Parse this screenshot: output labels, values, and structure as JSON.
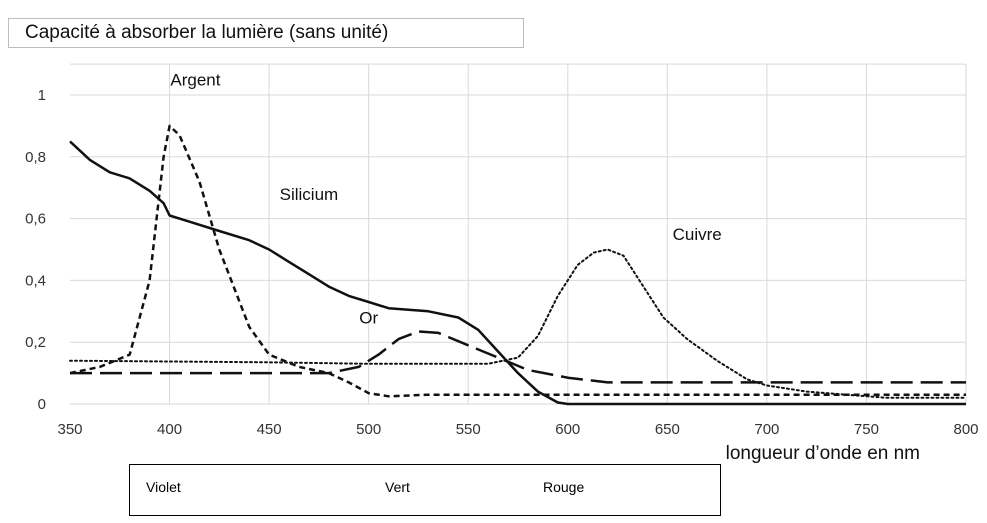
{
  "chart_data": {
    "type": "line",
    "title": "Capacité à absorber la lumière  (sans unité)",
    "xlabel": "longueur d’onde en nm",
    "ylabel": "",
    "xlim": [
      350,
      800
    ],
    "ylim": [
      0,
      1.1
    ],
    "grid": true,
    "x_ticks": [
      "350",
      "400",
      "450",
      "500",
      "550",
      "600",
      "650",
      "700",
      "750",
      "800"
    ],
    "y_ticks": [
      "0",
      "0,2",
      "0,4",
      "0,6",
      "0,8",
      "1"
    ],
    "series": [
      {
        "name": "Argent",
        "style": "dashed",
        "points": [
          [
            350,
            0.1
          ],
          [
            365,
            0.12
          ],
          [
            380,
            0.16
          ],
          [
            390,
            0.4
          ],
          [
            397,
            0.8
          ],
          [
            400,
            0.9
          ],
          [
            405,
            0.87
          ],
          [
            415,
            0.72
          ],
          [
            425,
            0.5
          ],
          [
            440,
            0.25
          ],
          [
            450,
            0.16
          ],
          [
            465,
            0.12
          ],
          [
            480,
            0.1
          ],
          [
            490,
            0.07
          ],
          [
            500,
            0.035
          ],
          [
            510,
            0.025
          ],
          [
            530,
            0.03
          ],
          [
            600,
            0.03
          ],
          [
            800,
            0.03
          ]
        ]
      },
      {
        "name": "Silicium",
        "style": "solid",
        "points": [
          [
            350,
            0.85
          ],
          [
            360,
            0.79
          ],
          [
            370,
            0.75
          ],
          [
            380,
            0.73
          ],
          [
            390,
            0.69
          ],
          [
            397,
            0.65
          ],
          [
            400,
            0.61
          ],
          [
            410,
            0.59
          ],
          [
            425,
            0.56
          ],
          [
            440,
            0.53
          ],
          [
            450,
            0.5
          ],
          [
            460,
            0.46
          ],
          [
            470,
            0.42
          ],
          [
            480,
            0.38
          ],
          [
            490,
            0.35
          ],
          [
            500,
            0.33
          ],
          [
            510,
            0.31
          ],
          [
            530,
            0.3
          ],
          [
            545,
            0.28
          ],
          [
            555,
            0.24
          ],
          [
            565,
            0.17
          ],
          [
            575,
            0.1
          ],
          [
            585,
            0.04
          ],
          [
            595,
            0.005
          ],
          [
            600,
            0.0
          ],
          [
            800,
            0.0
          ]
        ]
      },
      {
        "name": "Or",
        "style": "long-dashed",
        "points": [
          [
            350,
            0.1
          ],
          [
            400,
            0.1
          ],
          [
            450,
            0.1
          ],
          [
            480,
            0.1
          ],
          [
            495,
            0.12
          ],
          [
            505,
            0.16
          ],
          [
            515,
            0.21
          ],
          [
            525,
            0.235
          ],
          [
            535,
            0.23
          ],
          [
            550,
            0.19
          ],
          [
            565,
            0.15
          ],
          [
            580,
            0.11
          ],
          [
            600,
            0.085
          ],
          [
            620,
            0.07
          ],
          [
            650,
            0.07
          ],
          [
            800,
            0.07
          ]
        ]
      },
      {
        "name": "Cuivre",
        "style": "dotted",
        "points": [
          [
            350,
            0.14
          ],
          [
            450,
            0.135
          ],
          [
            500,
            0.13
          ],
          [
            560,
            0.13
          ],
          [
            575,
            0.15
          ],
          [
            585,
            0.22
          ],
          [
            595,
            0.35
          ],
          [
            605,
            0.45
          ],
          [
            613,
            0.49
          ],
          [
            620,
            0.5
          ],
          [
            628,
            0.48
          ],
          [
            638,
            0.38
          ],
          [
            648,
            0.28
          ],
          [
            660,
            0.21
          ],
          [
            675,
            0.14
          ],
          [
            690,
            0.08
          ],
          [
            700,
            0.06
          ],
          [
            720,
            0.04
          ],
          [
            740,
            0.03
          ],
          [
            760,
            0.02
          ],
          [
            800,
            0.02
          ]
        ]
      }
    ],
    "annotations": [
      {
        "text": "Argent",
        "x": 413,
        "y": 1.03
      },
      {
        "text": "Silicium",
        "x": 470,
        "y": 0.66
      },
      {
        "text": "Cuivre",
        "x": 665,
        "y": 0.53
      },
      {
        "text": "Or",
        "x": 500,
        "y": 0.26
      }
    ]
  },
  "color_bands": [
    {
      "label": "Violet"
    },
    {
      "label": "Vert"
    },
    {
      "label": "Rouge"
    }
  ]
}
